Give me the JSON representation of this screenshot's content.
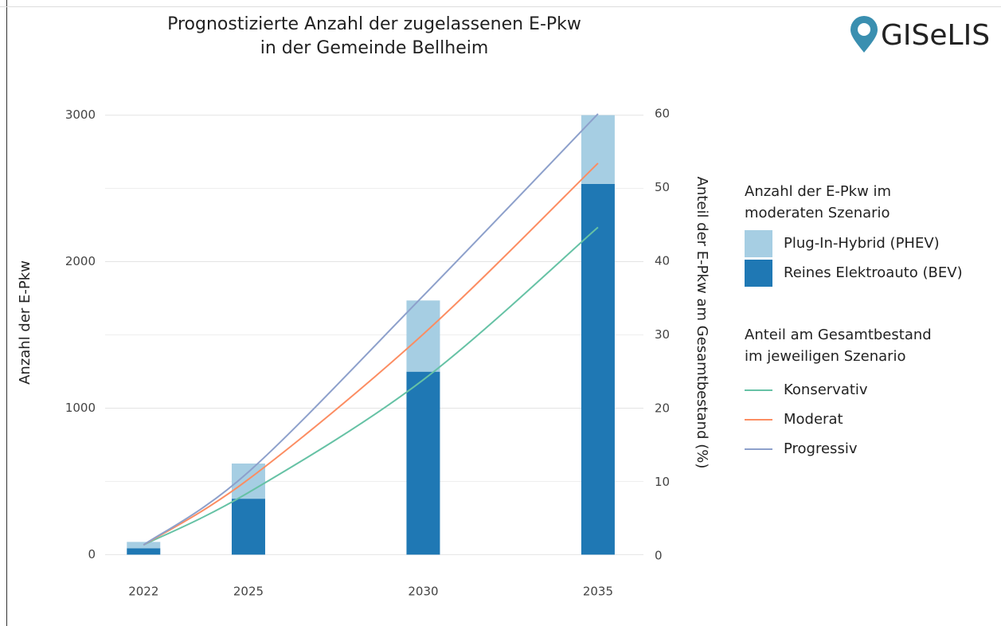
{
  "chart_data": {
    "type": "bar-line",
    "title": [
      "Prognostizierte Anzahl der zugelassenen E-Pkw",
      "in der Gemeinde Bellheim"
    ],
    "logo": "GISeLIS",
    "ylabel": "Anzahl der E-Pkw",
    "y2label": "Anteil der E-Pkw am Gesamtbestand (%)",
    "x": [
      2022,
      2025,
      2030,
      2035
    ],
    "xlim": [
      2020.9,
      2036.3
    ],
    "xticks": [
      2022,
      2025,
      2030,
      2035
    ],
    "ylim": [
      -150,
      3150
    ],
    "yticks": [
      0,
      1000,
      2000,
      3000
    ],
    "y_minor_ticks": [
      500,
      1500,
      2500
    ],
    "y2lim": [
      -2.8,
      62.8
    ],
    "y2ticks": [
      0,
      10,
      20,
      30,
      40,
      50,
      60
    ],
    "grid": true,
    "legend_titles": [
      [
        "Anzahl der E-Pkw im",
        "moderaten Szenario"
      ],
      [
        "Anteil am Gesamtbestand",
        "im jeweiligen Szenario"
      ]
    ],
    "series": [
      {
        "name": "Plug-In-Hybrid (PHEV)",
        "color": "#a6cee3",
        "type": "bar",
        "values": [
          43,
          240,
          486,
          469
        ]
      },
      {
        "name": "Reines Elektroauto (BEV)",
        "color": "#1f78b4",
        "type": "bar",
        "values": [
          44,
          382,
          1249,
          2531
        ]
      },
      {
        "name": "Konservativ",
        "color": "#66c2a5",
        "type": "line",
        "axis": "y2",
        "values": [
          1.5,
          8.6,
          23.9,
          44.6
        ]
      },
      {
        "name": "Moderat",
        "color": "#fc8d62",
        "type": "line",
        "axis": "y2",
        "values": [
          1.5,
          10.4,
          30.1,
          53.3
        ]
      },
      {
        "name": "Progressiv",
        "color": "#8da0cb",
        "type": "line",
        "axis": "y2",
        "values": [
          1.5,
          11.4,
          35.3,
          60
        ]
      }
    ]
  }
}
